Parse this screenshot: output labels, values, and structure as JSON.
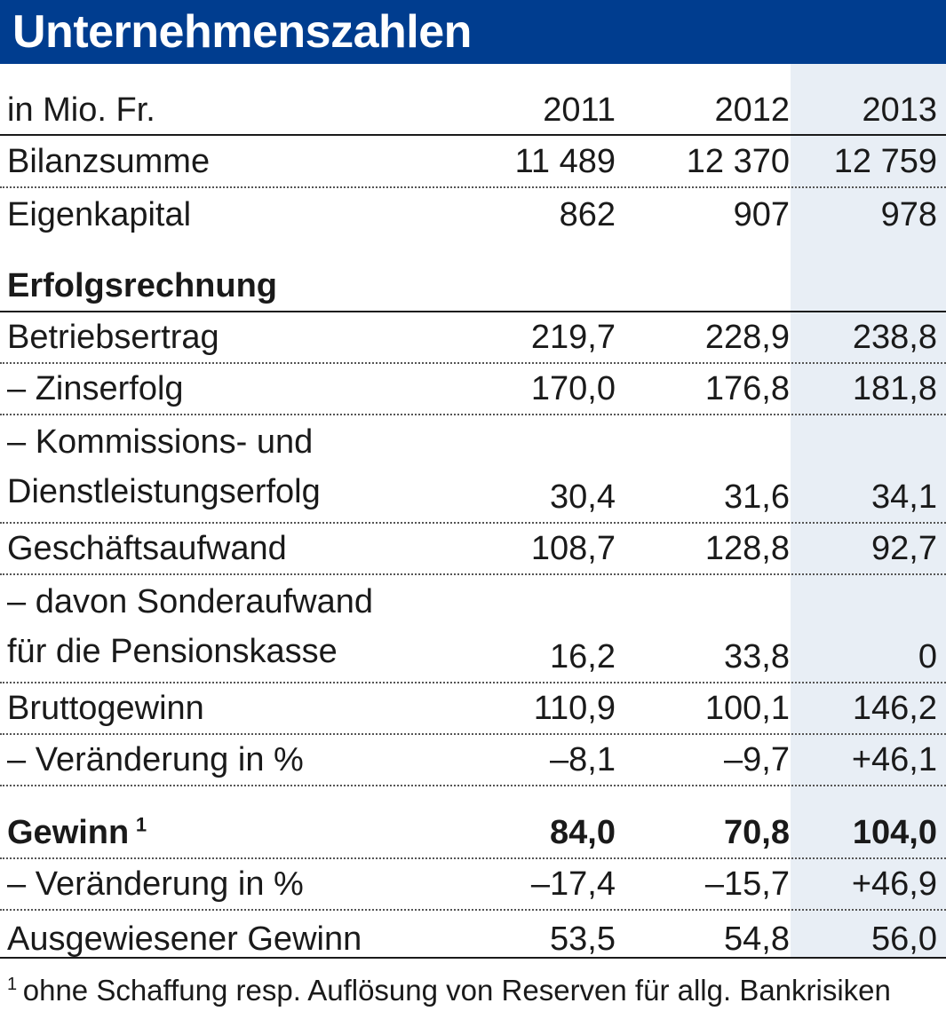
{
  "title": "Unternehmenszahlen",
  "header": {
    "unit_label": "in Mio. Fr.",
    "years": [
      "2011",
      "2012",
      "2013"
    ]
  },
  "rows": {
    "bilanzsumme": {
      "label": "Bilanzsumme",
      "values": [
        "11 489",
        "12 370",
        "12 759"
      ]
    },
    "eigenkapital": {
      "label": "Eigenkapital",
      "values": [
        "862",
        "907",
        "978"
      ]
    },
    "erfolgsrechnung": {
      "label": "Erfolgsrechnung"
    },
    "betriebsertrag": {
      "label": "Betriebsertrag",
      "values": [
        "219,7",
        "228,9",
        "238,8"
      ]
    },
    "zinserfolg": {
      "label": "– Zinserfolg",
      "values": [
        "170,0",
        "176,8",
        "181,8"
      ]
    },
    "kommissionserfolg": {
      "label_line1": "– Kommissions- und",
      "label_line2": "Dienstleistungserfolg",
      "values": [
        "30,4",
        "31,6",
        "34,1"
      ]
    },
    "geschaeftsaufwand": {
      "label": "Geschäftsaufwand",
      "values": [
        "108,7",
        "128,8",
        "92,7"
      ]
    },
    "sonderaufwand": {
      "label_line1": "– davon Sonderaufwand",
      "label_line2": "für die Pensionskasse",
      "values": [
        "16,2",
        "33,8",
        "0"
      ]
    },
    "bruttogewinn": {
      "label": "Bruttogewinn",
      "values": [
        "110,9",
        "100,1",
        "146,2"
      ]
    },
    "brutto_veraenderung": {
      "label": "– Veränderung in %",
      "values": [
        "–8,1",
        "–9,7",
        "+46,1"
      ]
    },
    "gewinn": {
      "label": "Gewinn",
      "footnote_mark": "1",
      "values": [
        "84,0",
        "70,8",
        "104,0"
      ]
    },
    "gewinn_veraenderung": {
      "label": "– Veränderung in %",
      "values": [
        "–17,4",
        "–15,7",
        "+46,9"
      ]
    },
    "ausgewiesener_gewinn": {
      "label": "Ausgewiesener Gewinn",
      "values": [
        "53,5",
        "54,8",
        "56,0"
      ]
    }
  },
  "footnote": {
    "mark": "1",
    "text": "ohne Schaffung resp. Auflösung von Reserven für allg. Bankrisiken"
  },
  "colors": {
    "title_background": "#003d8f",
    "title_text": "#ffffff",
    "highlight_column": "#e8eef5"
  }
}
